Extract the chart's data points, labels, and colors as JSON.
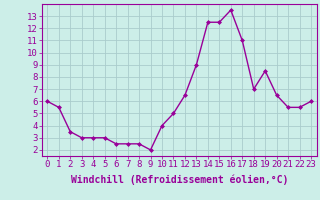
{
  "x": [
    0,
    1,
    2,
    3,
    4,
    5,
    6,
    7,
    8,
    9,
    10,
    11,
    12,
    13,
    14,
    15,
    16,
    17,
    18,
    19,
    20,
    21,
    22,
    23
  ],
  "y": [
    6,
    5.5,
    3.5,
    3,
    3,
    3,
    2.5,
    2.5,
    2.5,
    2,
    4,
    5,
    6.5,
    9,
    12.5,
    12.5,
    13.5,
    11,
    7,
    8.5,
    6.5,
    5.5,
    5.5,
    6
  ],
  "line_color": "#990099",
  "marker": "D",
  "marker_size": 2,
  "bg_color": "#cceee8",
  "grid_color": "#aacccc",
  "xlabel": "Windchill (Refroidissement éolien,°C)",
  "xlabel_fontsize": 7,
  "ylabel_ticks": [
    2,
    3,
    4,
    5,
    6,
    7,
    8,
    9,
    10,
    11,
    12,
    13
  ],
  "ylim": [
    1.5,
    14.0
  ],
  "xlim": [
    -0.5,
    23.5
  ],
  "tick_fontsize": 6.5,
  "line_width": 1.0
}
